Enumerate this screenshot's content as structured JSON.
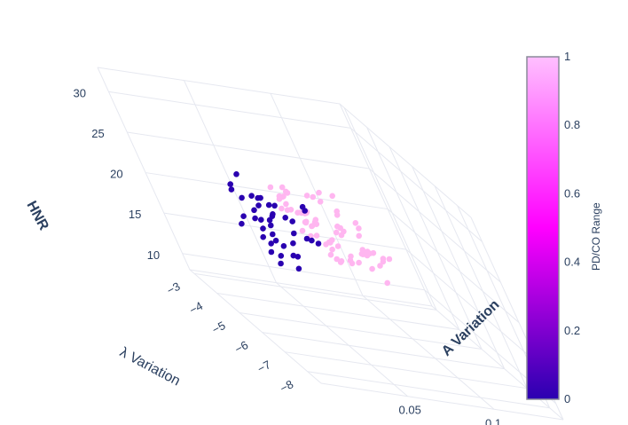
{
  "chart_data": {
    "type": "scatter3d",
    "axes": {
      "x": {
        "label": "λ Variation",
        "ticks": [
          "−3",
          "−4",
          "−5",
          "−6",
          "−7",
          "−8"
        ],
        "range": [
          -2.8,
          -8.6
        ]
      },
      "y": {
        "label": "A Variation",
        "ticks": [
          "0.05",
          "0.1"
        ],
        "range": [
          0.0,
          0.14
        ]
      },
      "z": {
        "label": "HNR",
        "ticks": [
          "10",
          "15",
          "20",
          "25",
          "30"
        ],
        "range": [
          8,
          33
        ]
      }
    },
    "colorbar": {
      "title": "PD/CO Range",
      "ticks": [
        "0",
        "0.2",
        "0.4",
        "0.6",
        "0.8",
        "1"
      ],
      "colors": [
        "#2a00b0",
        "#ff00ff",
        "#ffc0ff"
      ]
    },
    "series": [
      {
        "class": 1,
        "color": "#ffb6f0",
        "points": [
          [
            -2.9,
            0.118,
            10.4
          ],
          [
            -3.2,
            0.11,
            12.6
          ],
          [
            -3.3,
            0.115,
            13.4
          ],
          [
            -3.6,
            0.12,
            15.1
          ],
          [
            -3.3,
            0.118,
            14.0
          ],
          [
            -4.1,
            0.112,
            16.1
          ],
          [
            -4.6,
            0.1,
            17.8
          ],
          [
            -4.9,
            0.095,
            18.6
          ],
          [
            -4.4,
            0.105,
            17.3
          ],
          [
            -5.4,
            0.092,
            19.0
          ],
          [
            -5.6,
            0.088,
            19.5
          ],
          [
            -5.9,
            0.09,
            20.4
          ],
          [
            -4.3,
            0.095,
            21.9
          ],
          [
            -4.8,
            0.09,
            22.5
          ],
          [
            -5.6,
            0.08,
            22.7
          ],
          [
            -5.3,
            0.085,
            21.5
          ],
          [
            -6.0,
            0.078,
            23.4
          ],
          [
            -6.5,
            0.07,
            23.8
          ],
          [
            -6.2,
            0.075,
            22.9
          ],
          [
            -7.0,
            0.068,
            22.0
          ],
          [
            -6.0,
            0.065,
            24.0
          ],
          [
            -6.5,
            0.06,
            24.5
          ],
          [
            -6.7,
            0.058,
            25.2
          ],
          [
            -7.0,
            0.055,
            25.6
          ],
          [
            -7.3,
            0.05,
            25.9
          ],
          [
            -7.5,
            0.048,
            26.3
          ],
          [
            -6.8,
            0.055,
            26.6
          ],
          [
            -7.2,
            0.05,
            27.2
          ],
          [
            -7.6,
            0.045,
            27.0
          ],
          [
            -7.9,
            0.042,
            27.5
          ],
          [
            -8.1,
            0.04,
            28.0
          ],
          [
            -7.3,
            0.04,
            28.3
          ],
          [
            -7.8,
            0.035,
            28.6
          ],
          [
            -8.0,
            0.03,
            29.1
          ],
          [
            -6.3,
            0.05,
            25.5
          ],
          [
            -6.1,
            0.055,
            24.8
          ],
          [
            -5.8,
            0.06,
            24.2
          ],
          [
            -5.5,
            0.062,
            23.6
          ],
          [
            -5.2,
            0.068,
            23.0
          ],
          [
            -6.9,
            0.06,
            23.2
          ],
          [
            -7.1,
            0.048,
            24.1
          ],
          [
            -6.4,
            0.068,
            21.8
          ],
          [
            -5.7,
            0.072,
            21.0
          ],
          [
            -6.6,
            0.062,
            22.6
          ],
          [
            -7.4,
            0.055,
            23.4
          ],
          [
            -7.7,
            0.05,
            24.6
          ],
          [
            -7.9,
            0.045,
            26.0
          ],
          [
            -8.2,
            0.035,
            27.0
          ],
          [
            -7.5,
            0.038,
            29.6
          ],
          [
            -7.7,
            0.04,
            30.8
          ],
          [
            -7.9,
            0.03,
            31.5
          ],
          [
            -7.0,
            0.045,
            29.8
          ],
          [
            -6.6,
            0.05,
            28.3
          ],
          [
            -6.4,
            0.045,
            26.9
          ],
          [
            -5.9,
            0.05,
            26.2
          ],
          [
            -5.6,
            0.055,
            25.6
          ],
          [
            -5.0,
            0.075,
            24.9
          ],
          [
            -4.8,
            0.08,
            24.4
          ],
          [
            -4.6,
            0.085,
            23.5
          ],
          [
            -4.2,
            0.09,
            23.8
          ],
          [
            -3.9,
            0.1,
            23.0
          ],
          [
            -4.1,
            0.105,
            20.3
          ],
          [
            -3.8,
            0.108,
            19.0
          ],
          [
            -5.1,
            0.095,
            20.8
          ],
          [
            -5.3,
            0.09,
            18.9
          ],
          [
            -6.2,
            0.078,
            19.6
          ],
          [
            -6.6,
            0.07,
            20.6
          ],
          [
            -7.1,
            0.06,
            21.4
          ],
          [
            -7.6,
            0.055,
            22.3
          ],
          [
            -7.8,
            0.06,
            22.8
          ],
          [
            -8.0,
            0.05,
            23.5
          ],
          [
            -8.3,
            0.045,
            24.6
          ]
        ]
      },
      {
        "class": 0,
        "color": "#2a00b0",
        "points": [
          [
            -8.2,
            0.01,
            33.2
          ],
          [
            -8.6,
            0.0,
            32.6
          ],
          [
            -8.5,
            0.0,
            31.7
          ],
          [
            -8.4,
            0.005,
            30.6
          ],
          [
            -8.0,
            0.015,
            30.2
          ],
          [
            -7.8,
            0.02,
            29.6
          ],
          [
            -8.3,
            0.01,
            29.0
          ],
          [
            -8.5,
            0.0,
            28.4
          ],
          [
            -8.7,
            -0.005,
            27.8
          ],
          [
            -8.1,
            0.01,
            27.5
          ],
          [
            -7.9,
            0.015,
            27.0
          ],
          [
            -7.6,
            0.02,
            28.2
          ],
          [
            -7.4,
            0.025,
            28.8
          ],
          [
            -7.2,
            0.03,
            27.6
          ],
          [
            -7.0,
            0.035,
            27.2
          ],
          [
            -7.3,
            0.028,
            26.4
          ],
          [
            -7.6,
            0.022,
            25.8
          ],
          [
            -7.9,
            0.018,
            25.3
          ],
          [
            -8.2,
            0.012,
            24.7
          ],
          [
            -8.4,
            0.008,
            24.0
          ],
          [
            -7.7,
            0.02,
            24.1
          ],
          [
            -7.5,
            0.025,
            23.1
          ],
          [
            -7.8,
            0.018,
            22.4
          ],
          [
            -8.0,
            0.014,
            21.8
          ],
          [
            -6.8,
            0.04,
            25.4
          ],
          [
            -6.6,
            0.045,
            24.6
          ],
          [
            -6.9,
            0.04,
            23.7
          ],
          [
            -7.1,
            0.035,
            22.8
          ],
          [
            -7.3,
            0.03,
            21.6
          ],
          [
            -7.0,
            0.035,
            20.9
          ],
          [
            -7.5,
            0.028,
            20.4
          ],
          [
            -6.5,
            0.05,
            22.4
          ],
          [
            -6.2,
            0.055,
            21.6
          ],
          [
            -6.0,
            0.06,
            20.9
          ],
          [
            -6.3,
            0.058,
            26.1
          ],
          [
            -6.1,
            0.06,
            25.2
          ],
          [
            -8.1,
            0.012,
            26.3
          ],
          [
            -8.3,
            0.008,
            25.6
          ],
          [
            -7.4,
            0.028,
            26.9
          ],
          [
            -7.7,
            0.022,
            26.7
          ]
        ]
      }
    ]
  }
}
